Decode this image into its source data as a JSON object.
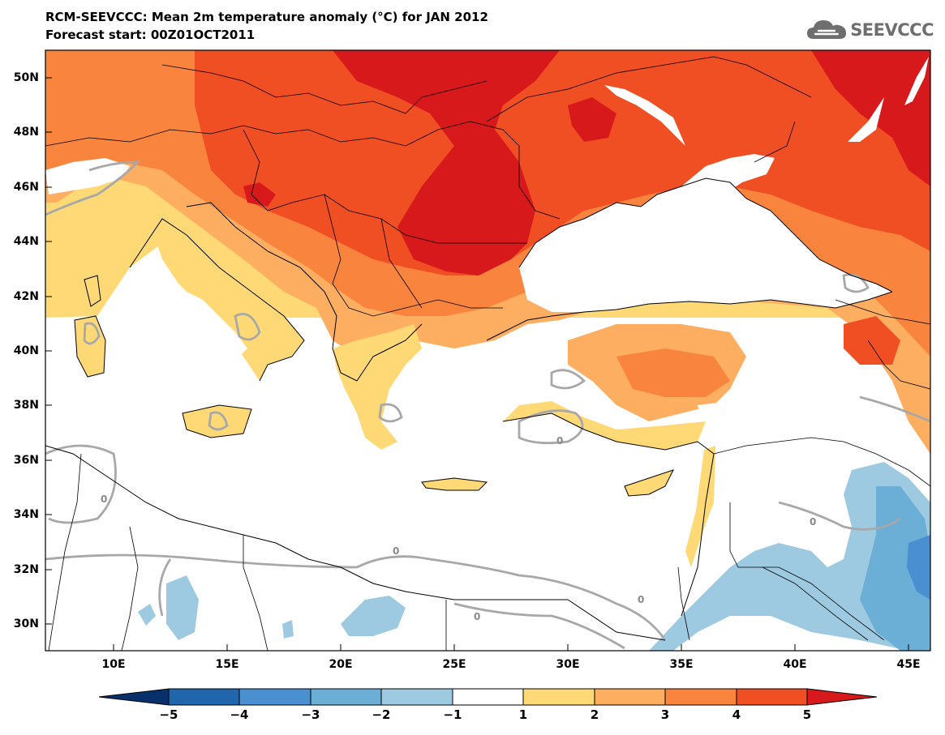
{
  "header": {
    "title": "RCM-SEEVCCC: Mean 2m temperature anomaly (°C) for JAN 2012",
    "subtitle": "Forecast start: 00Z01OCT2011"
  },
  "logo": {
    "text": "SEEVCCC",
    "icon": "cloud-icon"
  },
  "map": {
    "lon_range": [
      7,
      46
    ],
    "lat_range": [
      29,
      51
    ],
    "lat_ticks": [
      "50N",
      "48N",
      "46N",
      "44N",
      "42N",
      "40N",
      "38N",
      "36N",
      "34N",
      "32N",
      "30N"
    ],
    "lon_ticks": [
      "10E",
      "15E",
      "20E",
      "25E",
      "30E",
      "35E",
      "40E",
      "45E"
    ],
    "zero_contour_label": "0",
    "zero_contour_color": "#a8a8a8"
  },
  "colorbar": {
    "labels": [
      "−5",
      "−4",
      "−3",
      "−2",
      "−1",
      "1",
      "2",
      "3",
      "4",
      "5"
    ],
    "colors": [
      "#08306b",
      "#2166ac",
      "#4a8fd0",
      "#6baed6",
      "#9ecae1",
      "#ffffff",
      "#fed976",
      "#fdae61",
      "#f9843e",
      "#f04e23",
      "#d7191c"
    ]
  }
}
